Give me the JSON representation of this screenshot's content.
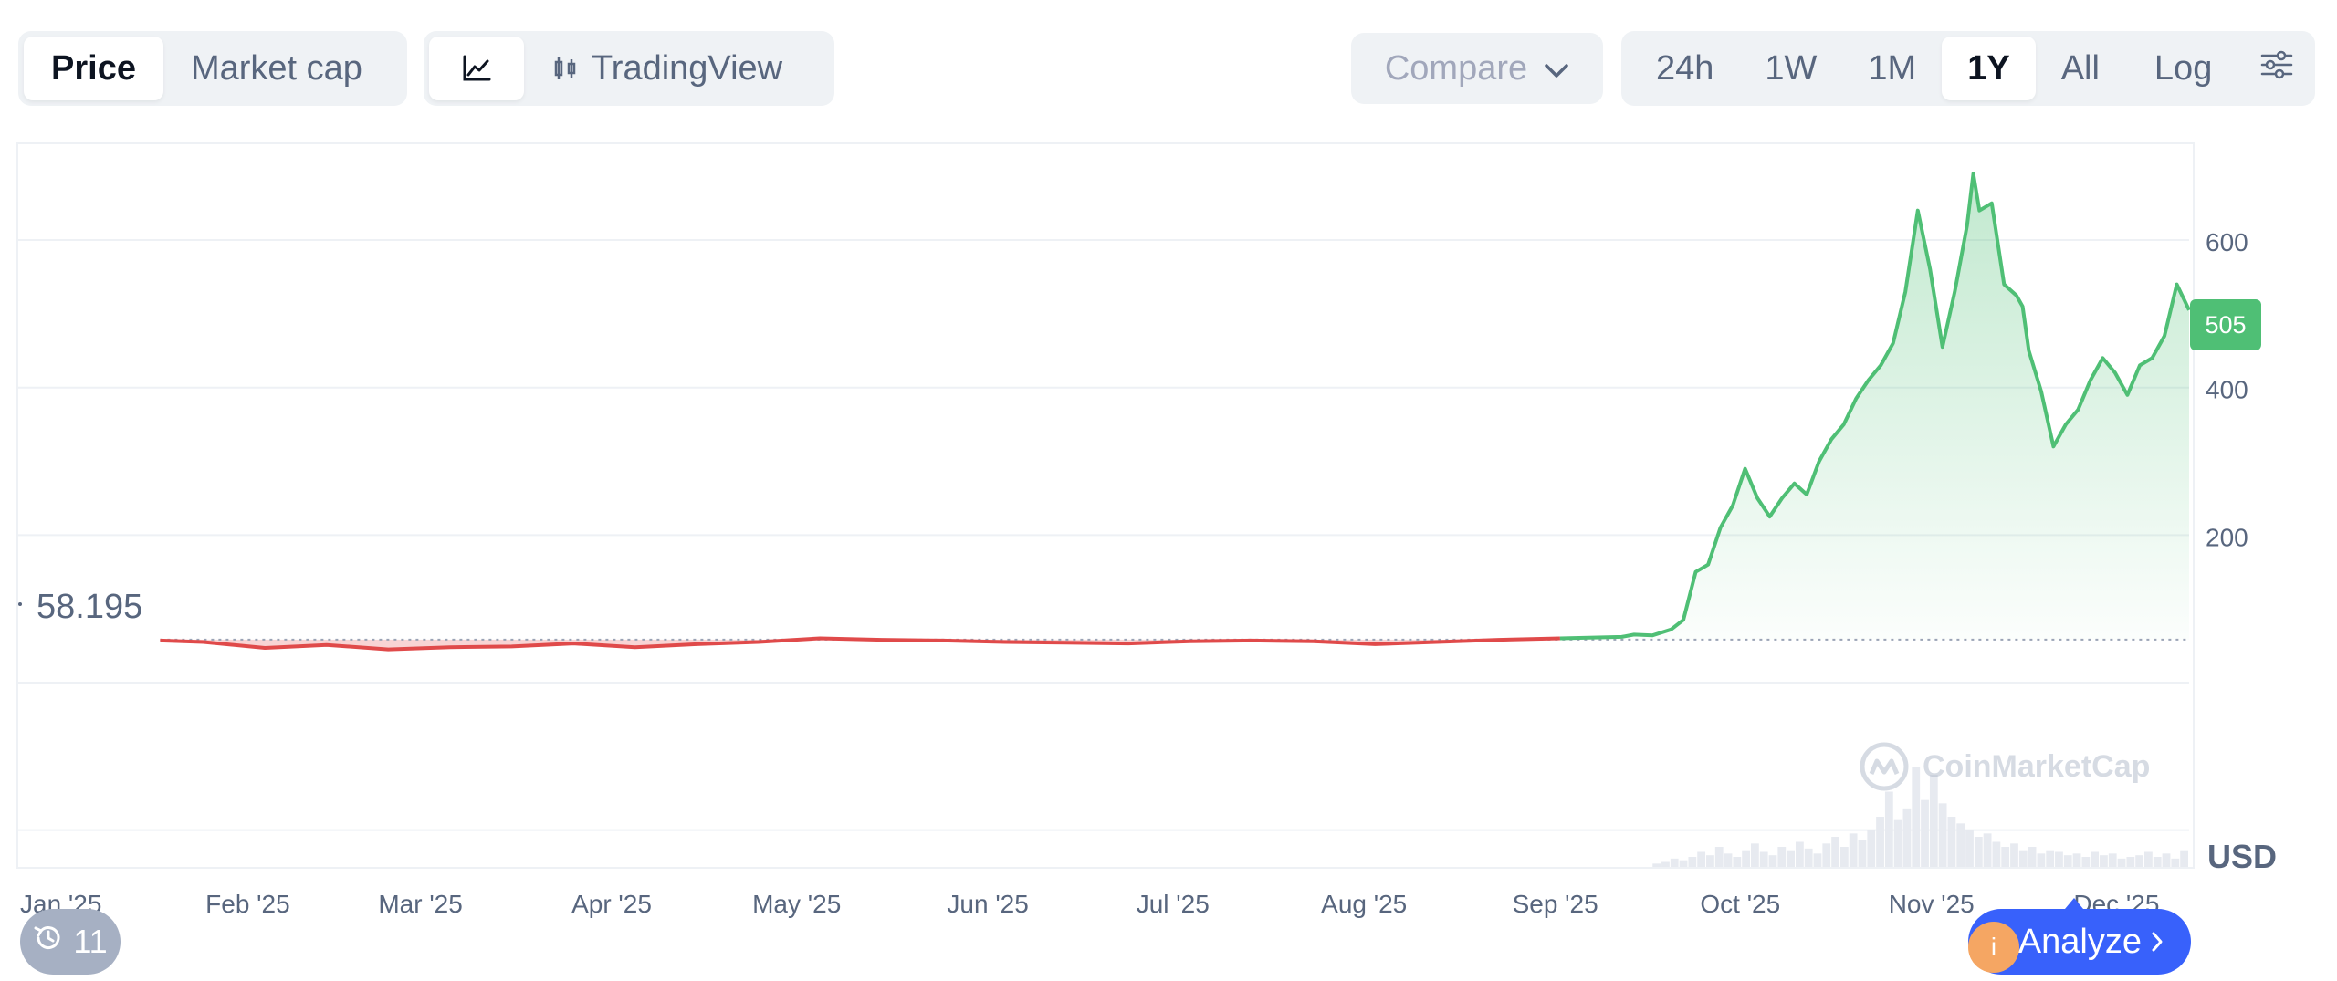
{
  "toolbar": {
    "price_tab": "Price",
    "market_cap_tab": "Market cap",
    "line_view_icon": "line-chart-icon",
    "tradingview_label": "TradingView",
    "compare_label": "Compare",
    "ranges": [
      "24h",
      "1W",
      "1M",
      "1Y",
      "All"
    ],
    "active_range": "1Y",
    "log_label": "Log",
    "settings_icon": "sliders-icon"
  },
  "chart": {
    "current_price_label": "505",
    "baseline_label": "58.195",
    "currency": "USD",
    "watermark": "CoinMarketCap",
    "history_count": "11",
    "analyze_label": "Analyze",
    "colors": {
      "up": "#4fbf75",
      "down": "#e04a4a",
      "up_fill": "#e8f7ee",
      "down_fill": "#f6c9c9",
      "grid": "#eef1f5",
      "axis_text": "#58667e",
      "volume": "#e7eaf0"
    }
  },
  "chart_data": {
    "type": "area",
    "title": "",
    "xlabel": "",
    "ylabel": "",
    "baseline": 58.195,
    "ylim": [
      -250,
      730
    ],
    "yticks": [
      200,
      400,
      600
    ],
    "xtick_labels": [
      "Jan '25",
      "Feb '25",
      "Mar '25",
      "Apr '25",
      "May '25",
      "Jun '25",
      "Jul '25",
      "Aug '25",
      "Sep '25",
      "Oct '25",
      "Nov '25",
      "Dec '25"
    ],
    "x_range_days": [
      0,
      352
    ],
    "xtick_days": [
      0,
      31,
      59,
      90,
      120,
      151,
      181,
      212,
      243,
      273,
      304,
      334
    ],
    "series": [
      {
        "x_days": [
          23,
          30,
          40,
          50,
          60,
          70,
          80,
          90,
          100,
          110,
          120,
          130,
          140,
          150,
          160,
          170,
          180,
          190,
          200,
          210,
          220,
          230,
          240,
          250,
          260,
          262,
          265,
          268,
          270,
          272,
          274,
          276,
          278,
          280,
          282,
          284,
          286,
          288,
          290,
          292,
          294,
          296,
          298,
          300,
          302,
          304,
          306,
          308,
          310,
          312,
          314,
          316,
          317,
          318,
          320,
          322,
          324,
          325,
          326,
          328,
          330,
          332,
          334,
          336,
          338,
          340,
          342,
          344,
          346,
          348,
          350,
          352
        ],
        "values": [
          57,
          55,
          47,
          51,
          45,
          48,
          49,
          53,
          48,
          52,
          55,
          60,
          58,
          57,
          55,
          54,
          53,
          56,
          57,
          56,
          52,
          55,
          58,
          60,
          62,
          65,
          64,
          72,
          85,
          150,
          160,
          210,
          240,
          290,
          250,
          225,
          250,
          270,
          255,
          300,
          330,
          350,
          385,
          410,
          430,
          460,
          530,
          640,
          560,
          455,
          530,
          620,
          690,
          640,
          650,
          540,
          525,
          510,
          450,
          395,
          320,
          350,
          370,
          410,
          440,
          420,
          390,
          430,
          440,
          470,
          540,
          505
        ]
      }
    ],
    "volume": {
      "x_days_start": 265,
      "note": "volume bars shown as light grey histogram",
      "values": [
        2,
        3,
        5,
        4,
        6,
        9,
        7,
        12,
        8,
        6,
        10,
        14,
        9,
        7,
        12,
        10,
        15,
        11,
        8,
        14,
        18,
        12,
        20,
        16,
        22,
        30,
        45,
        28,
        35,
        60,
        40,
        55,
        38,
        30,
        26,
        22,
        18,
        20,
        15,
        12,
        14,
        10,
        12,
        8,
        10,
        9,
        7,
        8,
        6,
        9,
        7,
        8,
        5,
        6,
        7,
        9,
        6,
        8,
        5,
        10
      ]
    }
  }
}
